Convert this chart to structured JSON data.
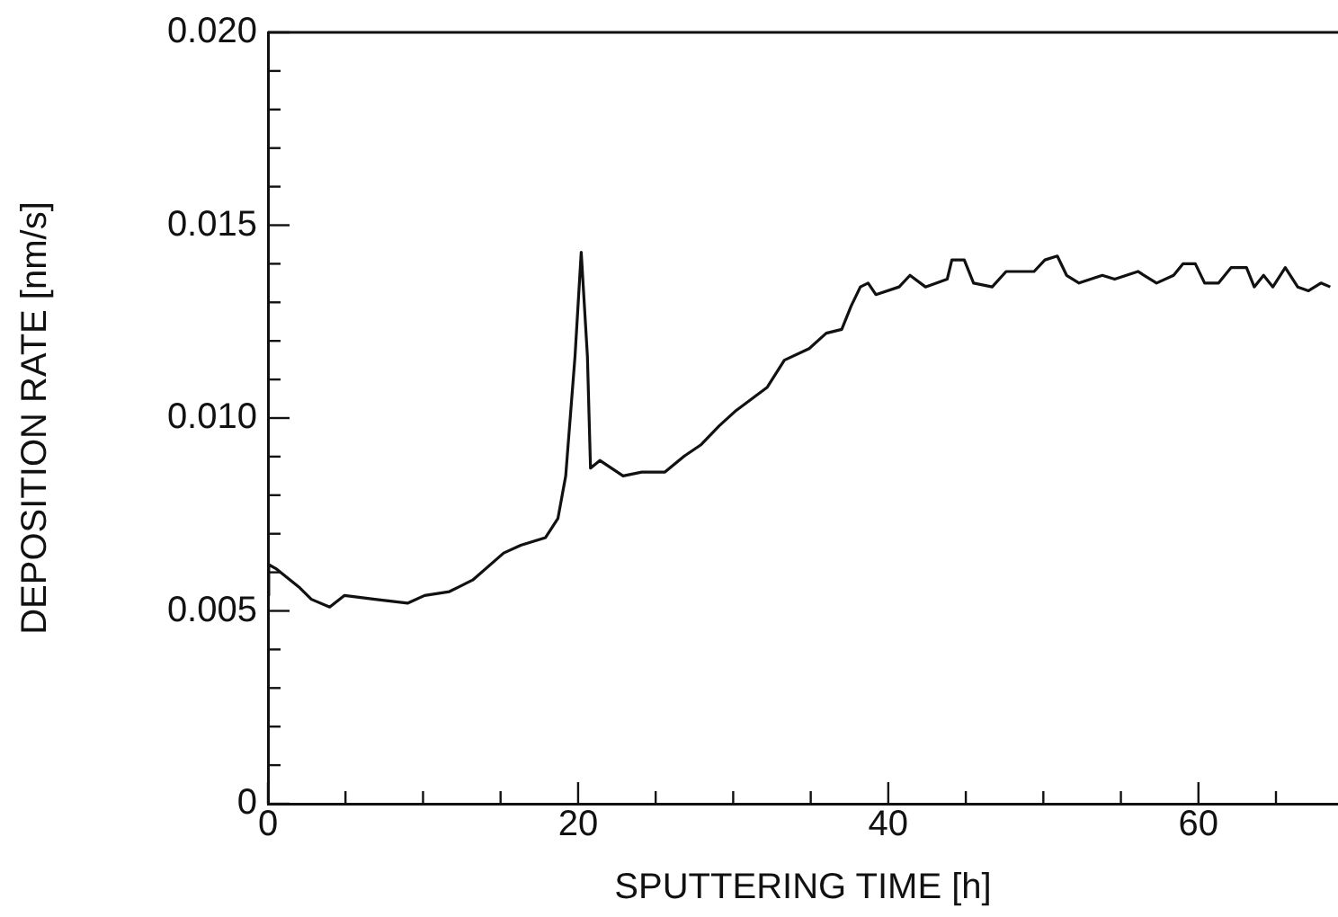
{
  "chart_data": {
    "type": "line",
    "xlabel": "SPUTTERING TIME [h]",
    "ylabel": "DEPOSITION RATE [nm/s]",
    "xlim": [
      0,
      69
    ],
    "ylim": [
      0,
      0.02
    ],
    "xticks": [
      0,
      {
        "value": 5,
        "label": null
      },
      {
        "value": 10,
        "label": null
      },
      {
        "value": 15,
        "label": null
      },
      20,
      {
        "value": 25,
        "label": null
      },
      {
        "value": 30,
        "label": null
      },
      {
        "value": 35,
        "label": null
      },
      40,
      {
        "value": 45,
        "label": null
      },
      {
        "value": 50,
        "label": null
      },
      {
        "value": 55,
        "label": null
      },
      60,
      {
        "value": 65,
        "label": null
      }
    ],
    "yticks": [
      0,
      {
        "value": 0.001,
        "label": null
      },
      {
        "value": 0.002,
        "label": null
      },
      {
        "value": 0.003,
        "label": null
      },
      {
        "value": 0.004,
        "label": null
      },
      0.005,
      {
        "value": 0.006,
        "label": null
      },
      {
        "value": 0.007,
        "label": null
      },
      {
        "value": 0.008,
        "label": null
      },
      {
        "value": 0.009,
        "label": null
      },
      {
        "value": 0.01,
        "label": "0.010"
      },
      {
        "value": 0.011,
        "label": null
      },
      {
        "value": 0.012,
        "label": null
      },
      {
        "value": 0.013,
        "label": null
      },
      {
        "value": 0.014,
        "label": null
      },
      0.015,
      {
        "value": 0.016,
        "label": null
      },
      {
        "value": 0.017,
        "label": null
      },
      {
        "value": 0.018,
        "label": null
      },
      {
        "value": 0.019,
        "label": null
      },
      {
        "value": 0.02,
        "label": "0.020"
      }
    ],
    "grid": false,
    "legend": false,
    "marker": "none",
    "line_style": "solid",
    "series": [
      {
        "color": "#111111",
        "x": [
          0,
          0.05,
          0.5,
          2.05,
          2.8,
          3.98,
          4.94,
          6.9,
          9.0,
          10.1,
          11.7,
          13.2,
          15.2,
          16.3,
          17.9,
          18.7,
          19.2,
          19.8,
          20.2,
          20.6,
          20.8,
          21.4,
          22.9,
          24.1,
          24.8,
          25.6,
          26.8,
          27.9,
          29.1,
          30.2,
          32.2,
          33.3,
          34.9,
          36.0,
          37.0,
          37.6,
          38.2,
          38.7,
          39.2,
          40.7,
          41.4,
          42.4,
          43.8,
          44.1,
          44.9,
          45.5,
          46.7,
          47.6,
          49.4,
          50.1,
          50.9,
          51.5,
          52.3,
          53.8,
          54.6,
          56.1,
          57.3,
          58.4,
          59.0,
          59.8,
          60.4,
          61.3,
          62.1,
          63.1,
          63.6,
          64.2,
          64.8,
          65.6,
          66.4,
          67.1,
          67.9,
          68.5
        ],
        "values": [
          0.0054,
          0.0062,
          0.0061,
          0.0056,
          0.0053,
          0.0051,
          0.0054,
          0.0053,
          0.0052,
          0.0054,
          0.0055,
          0.0058,
          0.0065,
          0.0067,
          0.0069,
          0.0074,
          0.0085,
          0.0116,
          0.0143,
          0.0116,
          0.0087,
          0.0089,
          0.0085,
          0.0086,
          0.0086,
          0.0086,
          0.009,
          0.0093,
          0.0098,
          0.0102,
          0.0108,
          0.0115,
          0.0118,
          0.0122,
          0.0123,
          0.0129,
          0.0134,
          0.0135,
          0.0132,
          0.0134,
          0.0137,
          0.0134,
          0.0136,
          0.0141,
          0.0141,
          0.0135,
          0.0134,
          0.0138,
          0.0138,
          0.0141,
          0.0142,
          0.0137,
          0.0135,
          0.0137,
          0.0136,
          0.0138,
          0.0135,
          0.0137,
          0.014,
          0.014,
          0.0135,
          0.0135,
          0.0139,
          0.0139,
          0.0134,
          0.0137,
          0.0134,
          0.0139,
          0.0134,
          0.0133,
          0.0135,
          0.0134
        ]
      }
    ]
  }
}
